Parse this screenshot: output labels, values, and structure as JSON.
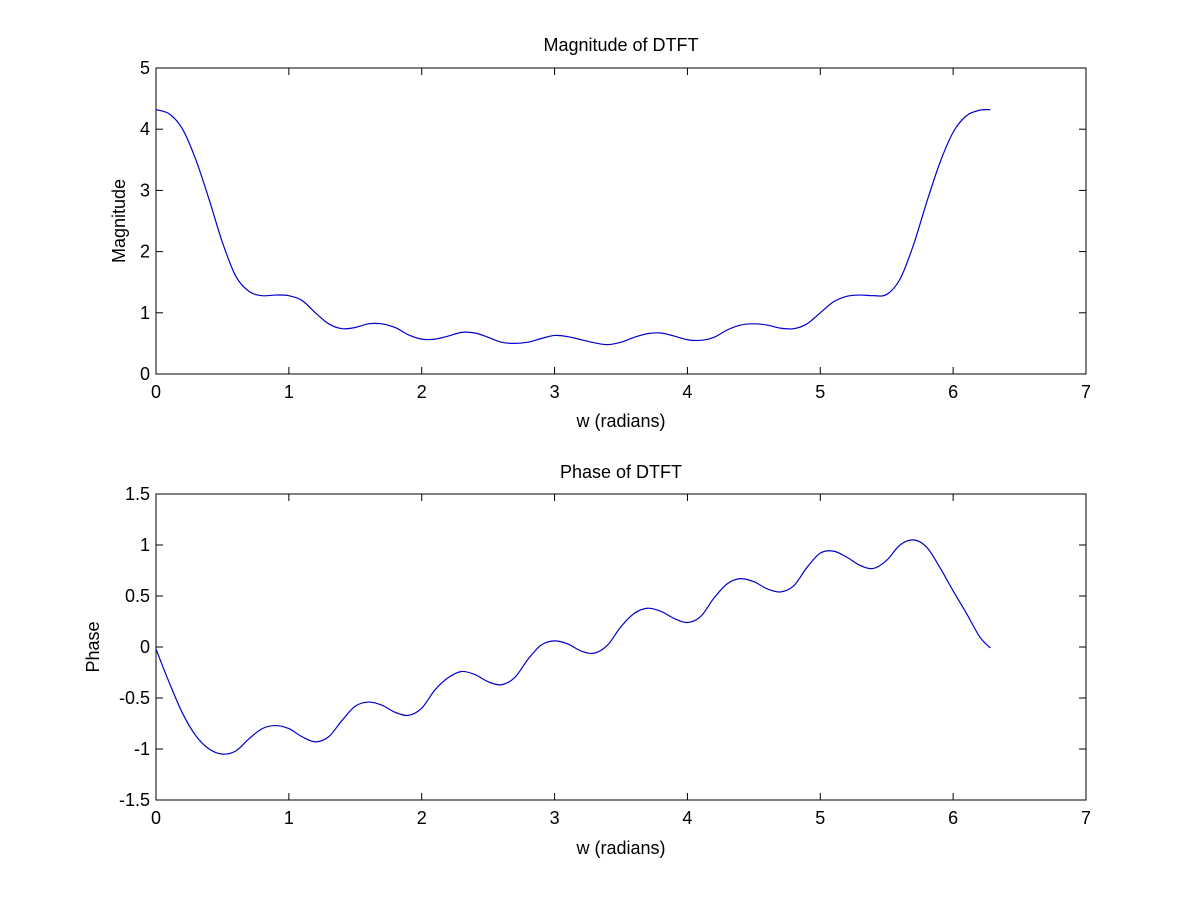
{
  "chart_data": [
    {
      "type": "line",
      "title": "Magnitude of DTFT",
      "xlabel": "w (radians)",
      "ylabel": "Magnitude",
      "xlim": [
        0,
        7
      ],
      "ylim": [
        0,
        5
      ],
      "xticks": [
        "0",
        "1",
        "2",
        "3",
        "4",
        "5",
        "6",
        "7"
      ],
      "yticks": [
        "0",
        "1",
        "2",
        "3",
        "4",
        "5"
      ],
      "grid": false,
      "series": [
        {
          "color": "#0000cc",
          "x": [
            0,
            0.1,
            0.2,
            0.3,
            0.4,
            0.5,
            0.6,
            0.7,
            0.8,
            0.9,
            1.0,
            1.1,
            1.2,
            1.3,
            1.4,
            1.5,
            1.6,
            1.7,
            1.8,
            1.9,
            2.0,
            2.1,
            2.2,
            2.3,
            2.4,
            2.5,
            2.6,
            2.7,
            2.8,
            2.9,
            3.0,
            3.1,
            3.2,
            3.3,
            3.4,
            3.5,
            3.6,
            3.7,
            3.8,
            3.9,
            4.0,
            4.1,
            4.2,
            4.3,
            4.4,
            4.5,
            4.6,
            4.7,
            4.8,
            4.9,
            5.0,
            5.1,
            5.2,
            5.3,
            5.4,
            5.5,
            5.6,
            5.7,
            5.8,
            5.9,
            6.0,
            6.1,
            6.2,
            6.28
          ],
          "y": [
            4.32,
            4.25,
            4.0,
            3.5,
            2.85,
            2.15,
            1.6,
            1.35,
            1.28,
            1.29,
            1.28,
            1.2,
            1.0,
            0.82,
            0.74,
            0.76,
            0.82,
            0.82,
            0.76,
            0.64,
            0.57,
            0.57,
            0.62,
            0.68,
            0.67,
            0.6,
            0.52,
            0.5,
            0.52,
            0.58,
            0.63,
            0.61,
            0.56,
            0.51,
            0.48,
            0.52,
            0.6,
            0.66,
            0.67,
            0.62,
            0.56,
            0.55,
            0.6,
            0.72,
            0.8,
            0.82,
            0.8,
            0.75,
            0.74,
            0.82,
            1.0,
            1.18,
            1.27,
            1.29,
            1.28,
            1.3,
            1.55,
            2.1,
            2.8,
            3.45,
            3.95,
            4.22,
            4.31,
            4.32
          ]
        }
      ]
    },
    {
      "type": "line",
      "title": "Phase of DTFT",
      "xlabel": "w (radians)",
      "ylabel": "Phase",
      "xlim": [
        0,
        7
      ],
      "ylim": [
        -1.5,
        1.5
      ],
      "xticks": [
        "0",
        "1",
        "2",
        "3",
        "4",
        "5",
        "6",
        "7"
      ],
      "yticks": [
        "-1.5",
        "-1",
        "-0.5",
        "0",
        "0.5",
        "1",
        "1.5"
      ],
      "grid": false,
      "series": [
        {
          "color": "#0000cc",
          "x": [
            0,
            0.1,
            0.2,
            0.3,
            0.4,
            0.5,
            0.6,
            0.7,
            0.8,
            0.9,
            1.0,
            1.1,
            1.2,
            1.3,
            1.4,
            1.5,
            1.6,
            1.7,
            1.8,
            1.9,
            2.0,
            2.1,
            2.2,
            2.3,
            2.4,
            2.5,
            2.6,
            2.7,
            2.8,
            2.9,
            3.0,
            3.1,
            3.2,
            3.3,
            3.4,
            3.5,
            3.6,
            3.7,
            3.8,
            3.9,
            4.0,
            4.1,
            4.2,
            4.3,
            4.4,
            4.5,
            4.6,
            4.7,
            4.8,
            4.9,
            5.0,
            5.1,
            5.2,
            5.3,
            5.4,
            5.5,
            5.6,
            5.7,
            5.8,
            5.9,
            6.0,
            6.1,
            6.2,
            6.28
          ],
          "y": [
            -0.02,
            -0.35,
            -0.65,
            -0.87,
            -1.0,
            -1.05,
            -1.02,
            -0.9,
            -0.8,
            -0.77,
            -0.8,
            -0.88,
            -0.93,
            -0.88,
            -0.72,
            -0.58,
            -0.54,
            -0.57,
            -0.64,
            -0.67,
            -0.6,
            -0.42,
            -0.3,
            -0.24,
            -0.27,
            -0.34,
            -0.37,
            -0.3,
            -0.12,
            0.02,
            0.06,
            0.03,
            -0.04,
            -0.06,
            0.02,
            0.2,
            0.33,
            0.38,
            0.35,
            0.28,
            0.24,
            0.3,
            0.48,
            0.62,
            0.67,
            0.64,
            0.57,
            0.54,
            0.6,
            0.78,
            0.92,
            0.94,
            0.88,
            0.8,
            0.77,
            0.85,
            1.0,
            1.05,
            0.98,
            0.78,
            0.55,
            0.33,
            0.1,
            -0.01
          ]
        }
      ]
    }
  ]
}
